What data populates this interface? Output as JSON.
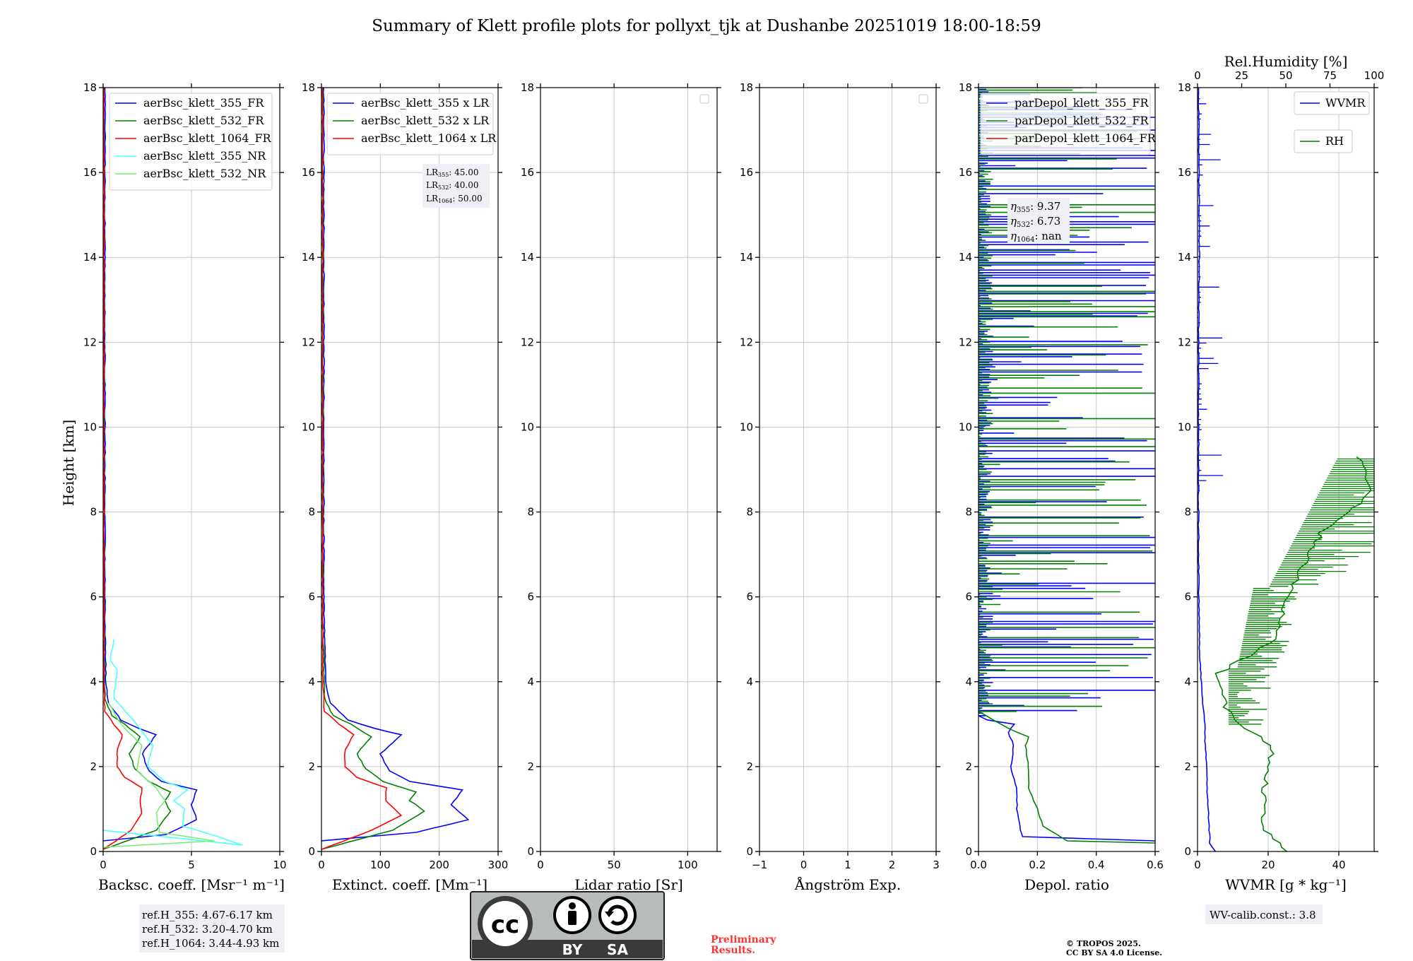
{
  "title": "Summary of Klett profile plots for pollyxt_tjk at Dushanbe 20251019 18:00-18:59",
  "ylabel": "Height [km]",
  "ylim": [
    0,
    18
  ],
  "yticks": [
    0,
    2,
    4,
    6,
    8,
    10,
    12,
    14,
    16,
    18
  ],
  "colors": {
    "blue": "#0000ff",
    "green": "#008000",
    "red": "#ff0000",
    "cyan": "#4dffff",
    "lightgreen": "#77ee77",
    "legend_bg": "#eef0f5",
    "cc_gray": "#b8bcb8",
    "cc_dark": "#3a3a3a",
    "prelim": "#ff3333"
  },
  "panels": {
    "bsc": {
      "xlabel": "Backsc. coeff. [Msr⁻¹ m⁻¹]",
      "xticks": [
        "0",
        "5",
        "10"
      ],
      "legend": [
        "aerBsc_klett_355_FR",
        "aerBsc_klett_532_FR",
        "aerBsc_klett_1064_FR",
        "aerBsc_klett_355_NR",
        "aerBsc_klett_532_NR"
      ],
      "refh": [
        "ref.H_355: 4.67-6.17 km",
        "ref.H_532: 3.20-4.70 km",
        "ref.H_1064: 3.44-4.93 km"
      ]
    },
    "ext": {
      "xlabel": "Extinct. coeff. [Mm⁻¹]",
      "xticks": [
        "0",
        "100",
        "200",
        "300"
      ],
      "legend": [
        "aerBsc_klett_355 x LR",
        "aerBsc_klett_532 x LR",
        "aerBsc_klett_1064 x LR"
      ],
      "lr": [
        {
          "sub": "355",
          "val": "45.00"
        },
        {
          "sub": "532",
          "val": "40.00"
        },
        {
          "sub": "1064",
          "val": "50.00"
        }
      ]
    },
    "lr": {
      "xlabel": "Lidar ratio [Sr]",
      "xticks": [
        "0",
        "50",
        "100"
      ]
    },
    "ang": {
      "xlabel": "Ångström Exp.",
      "xticks": [
        "−1",
        "0",
        "1",
        "2",
        "3"
      ]
    },
    "dep": {
      "xlabel": "Depol. ratio",
      "xticks": [
        "0.0",
        "0.2",
        "0.4",
        "0.6"
      ],
      "legend": [
        "parDepol_klett_355_FR",
        "parDepol_klett_532_FR",
        "parDepol_klett_1064_FR"
      ],
      "eta": [
        {
          "sub": "355",
          "val": "9.37"
        },
        {
          "sub": "532",
          "val": "6.73"
        },
        {
          "sub": "1064",
          "val": "nan"
        }
      ]
    },
    "wv": {
      "xlabel": "WVMR [g * kg⁻¹]",
      "xticks": [
        "0",
        "20",
        "40"
      ],
      "top_label": "Rel.Humidity [%]",
      "top_ticks": [
        "0",
        "25",
        "50",
        "75",
        "100"
      ],
      "legend_wvmr": "WVMR",
      "legend_rh": "RH",
      "calib": "WV-calib.const.: 3.8"
    }
  },
  "chart_data": {
    "type": "line",
    "title": "Summary of Klett profile plots for pollyxt_tjk at Dushanbe 20251019 18:00-18:59",
    "ylabel": "Height [km]",
    "ylim": [
      0,
      18
    ],
    "grid": true,
    "subplots": [
      {
        "xlabel": "Backsc. coeff. [Msr⁻¹ m⁻¹]",
        "xlim": [
          0,
          10
        ],
        "legend_position": "top-right",
        "series": [
          {
            "name": "aerBsc_klett_355_FR",
            "color": "blue",
            "points": [
              [
                0,
                0.25
              ],
              [
                3.6,
                0.4
              ],
              [
                5.3,
                0.75
              ],
              [
                5.0,
                1.1
              ],
              [
                5.3,
                1.45
              ],
              [
                3.3,
                1.65
              ],
              [
                2.6,
                1.9
              ],
              [
                2.2,
                2.3
              ],
              [
                3.0,
                2.75
              ],
              [
                2.0,
                2.9
              ],
              [
                1.0,
                3.1
              ],
              [
                0.3,
                3.5
              ],
              [
                0.15,
                4.0
              ],
              [
                0.1,
                6.0
              ],
              [
                0.1,
                12.0
              ],
              [
                0.1,
                18.0
              ]
            ]
          },
          {
            "name": "aerBsc_klett_532_FR",
            "color": "green",
            "points": [
              [
                0,
                0.05
              ],
              [
                3.0,
                0.5
              ],
              [
                3.8,
                0.95
              ],
              [
                3.5,
                1.2
              ],
              [
                3.8,
                1.4
              ],
              [
                2.6,
                1.65
              ],
              [
                1.8,
                1.95
              ],
              [
                1.5,
                2.3
              ],
              [
                2.1,
                2.7
              ],
              [
                1.2,
                3.0
              ],
              [
                0.5,
                3.2
              ],
              [
                0.1,
                3.6
              ],
              [
                0.05,
                6.0
              ],
              [
                0.05,
                18.0
              ]
            ]
          },
          {
            "name": "aerBsc_klett_1064_FR",
            "color": "red",
            "points": [
              [
                0,
                0.05
              ],
              [
                1.6,
                0.5
              ],
              [
                2.2,
                0.9
              ],
              [
                2.1,
                1.2
              ],
              [
                2.2,
                1.5
              ],
              [
                1.2,
                1.75
              ],
              [
                0.8,
                2.0
              ],
              [
                0.8,
                2.4
              ],
              [
                1.1,
                2.75
              ],
              [
                0.6,
                3.0
              ],
              [
                0.1,
                3.3
              ],
              [
                0.05,
                4.0
              ],
              [
                0.05,
                18.0
              ]
            ]
          },
          {
            "name": "aerBsc_klett_355_NR",
            "color": "cyan",
            "points": [
              [
                0,
                0.5
              ],
              [
                7.9,
                0.15
              ],
              [
                6.5,
                0.35
              ],
              [
                4.5,
                0.6
              ],
              [
                4.6,
                1.0
              ],
              [
                4.0,
                1.2
              ],
              [
                4.8,
                1.45
              ],
              [
                3.5,
                1.65
              ],
              [
                2.5,
                2.0
              ],
              [
                2.8,
                2.5
              ],
              [
                1.5,
                3.2
              ],
              [
                0.6,
                3.6
              ],
              [
                0.8,
                4.3
              ],
              [
                0.4,
                4.5
              ],
              [
                0.6,
                5.0
              ]
            ]
          },
          {
            "name": "aerBsc_klett_532_NR",
            "color": "lightgreen",
            "points": [
              [
                0,
                0.1
              ],
              [
                6.3,
                0.25
              ],
              [
                3.2,
                0.45
              ],
              [
                3.0,
                0.9
              ],
              [
                3.5,
                1.2
              ],
              [
                3.0,
                1.5
              ],
              [
                1.9,
                1.9
              ],
              [
                2.2,
                2.5
              ],
              [
                1.0,
                3.0
              ],
              [
                0.3,
                3.5
              ]
            ]
          }
        ],
        "annotations": [
          "ref.H_355: 4.67-6.17 km",
          "ref.H_532: 3.20-4.70 km",
          "ref.H_1064: 3.44-4.93 km"
        ]
      },
      {
        "xlabel": "Extinct. coeff. [Mm⁻¹]",
        "xlim": [
          0,
          300
        ],
        "legend_position": "top-right",
        "series": [
          {
            "name": "aerBsc_klett_355 x LR",
            "color": "blue",
            "points": [
              [
                0,
                0.25
              ],
              [
                160,
                0.45
              ],
              [
                250,
                0.75
              ],
              [
                220,
                1.1
              ],
              [
                240,
                1.45
              ],
              [
                150,
                1.65
              ],
              [
                115,
                1.9
              ],
              [
                100,
                2.3
              ],
              [
                135,
                2.75
              ],
              [
                90,
                2.9
              ],
              [
                45,
                3.1
              ],
              [
                15,
                3.5
              ],
              [
                7,
                4.0
              ],
              [
                4,
                6.0
              ],
              [
                4,
                12.0
              ],
              [
                4,
                18.0
              ]
            ]
          },
          {
            "name": "aerBsc_klett_532 x LR",
            "color": "green",
            "points": [
              [
                0,
                0.05
              ],
              [
                120,
                0.5
              ],
              [
                175,
                0.95
              ],
              [
                150,
                1.2
              ],
              [
                160,
                1.4
              ],
              [
                105,
                1.65
              ],
              [
                75,
                1.95
              ],
              [
                60,
                2.3
              ],
              [
                85,
                2.7
              ],
              [
                50,
                3.0
              ],
              [
                20,
                3.2
              ],
              [
                5,
                3.6
              ],
              [
                2,
                6.0
              ],
              [
                2,
                18.0
              ]
            ]
          },
          {
            "name": "aerBsc_klett_1064 x LR",
            "color": "red",
            "points": [
              [
                0,
                0.05
              ],
              [
                85,
                0.5
              ],
              [
                135,
                0.85
              ],
              [
                110,
                1.2
              ],
              [
                110,
                1.5
              ],
              [
                60,
                1.75
              ],
              [
                40,
                2.0
              ],
              [
                40,
                2.4
              ],
              [
                55,
                2.75
              ],
              [
                30,
                3.0
              ],
              [
                5,
                3.3
              ],
              [
                2,
                4.0
              ],
              [
                2,
                18.0
              ]
            ]
          }
        ],
        "annotations": [
          "LR355: 45.00",
          "LR532: 40.00",
          "LR1064: 50.00"
        ]
      },
      {
        "xlabel": "Lidar ratio [Sr]",
        "xlim": [
          0,
          120
        ],
        "series": []
      },
      {
        "xlabel": "Ångström Exp.",
        "xlim": [
          -1,
          3
        ],
        "series": []
      },
      {
        "xlabel": "Depol. ratio",
        "xlim": [
          0,
          0.6
        ],
        "legend_position": "top-right",
        "series": [
          {
            "name": "parDepol_klett_355_FR",
            "color": "blue",
            "points": [
              [
                0.6,
                0.25
              ],
              [
                0.15,
                0.35
              ],
              [
                0.14,
                0.6
              ],
              [
                0.13,
                1.0
              ],
              [
                0.13,
                1.5
              ],
              [
                0.11,
                2.0
              ],
              [
                0.12,
                2.5
              ],
              [
                0.1,
                2.8
              ],
              [
                0.12,
                3.0
              ],
              [
                0.03,
                3.1
              ],
              [
                0.0,
                3.2
              ]
            ],
            "note": "noisy spikes from 3.2 to 18 km, values 0.0-0.6"
          },
          {
            "name": "parDepol_klett_532_FR",
            "color": "green",
            "points": [
              [
                0.6,
                0.2
              ],
              [
                0.3,
                0.25
              ],
              [
                0.22,
                0.6
              ],
              [
                0.2,
                1.0
              ],
              [
                0.17,
                1.5
              ],
              [
                0.17,
                2.0
              ],
              [
                0.16,
                2.5
              ],
              [
                0.17,
                2.7
              ],
              [
                0.1,
                2.9
              ],
              [
                0.0,
                3.3
              ]
            ],
            "note": "noisy spikes from 3.3 to 18 km, values 0.0-0.6"
          },
          {
            "name": "parDepol_klett_1064_FR",
            "color": "red",
            "points": []
          }
        ],
        "annotations": [
          "η355: 9.37",
          "η532: 6.73",
          "η1064: nan"
        ]
      },
      {
        "xlabel": "WVMR [g * kg⁻¹]",
        "xlim": [
          0,
          50
        ],
        "x2label": "Rel.Humidity [%]",
        "x2lim": [
          0,
          100
        ],
        "series": [
          {
            "name": "WVMR",
            "axis": "bottom",
            "color": "blue",
            "points": [
              [
                5,
                0.0
              ],
              [
                3.5,
                0.2
              ],
              [
                3.0,
                1.0
              ],
              [
                2.5,
                2.0
              ],
              [
                2.0,
                3.0
              ],
              [
                1.0,
                4.0
              ],
              [
                0.5,
                5.0
              ],
              [
                0.4,
                6.0
              ],
              [
                0.3,
                8.0
              ],
              [
                0.3,
                12.0
              ],
              [
                0.5,
                14.0
              ],
              [
                0.3,
                18.0
              ]
            ]
          },
          {
            "name": "RH",
            "axis": "top",
            "color": "green",
            "points": [
              [
                50,
                0.0
              ],
              [
                38,
                0.5
              ],
              [
                38,
                1.5
              ],
              [
                43,
                2.5
              ],
              [
                22,
                3.0
              ],
              [
                15,
                3.5
              ],
              [
                12,
                4.2
              ],
              [
                45,
                5.0
              ],
              [
                50,
                6.0
              ],
              [
                70,
                7.5
              ],
              [
                100,
                8.5
              ],
              [
                90,
                9.3
              ]
            ]
          }
        ],
        "annotations": [
          "WV-calib.const.: 3.8"
        ]
      }
    ]
  },
  "footer": {
    "cc_by": "BY",
    "cc_sa": "SA",
    "prelim": [
      "Preliminary",
      "Results."
    ],
    "tropos": [
      "© TROPOS 2025.",
      "CC BY SA 4.0 License."
    ]
  }
}
